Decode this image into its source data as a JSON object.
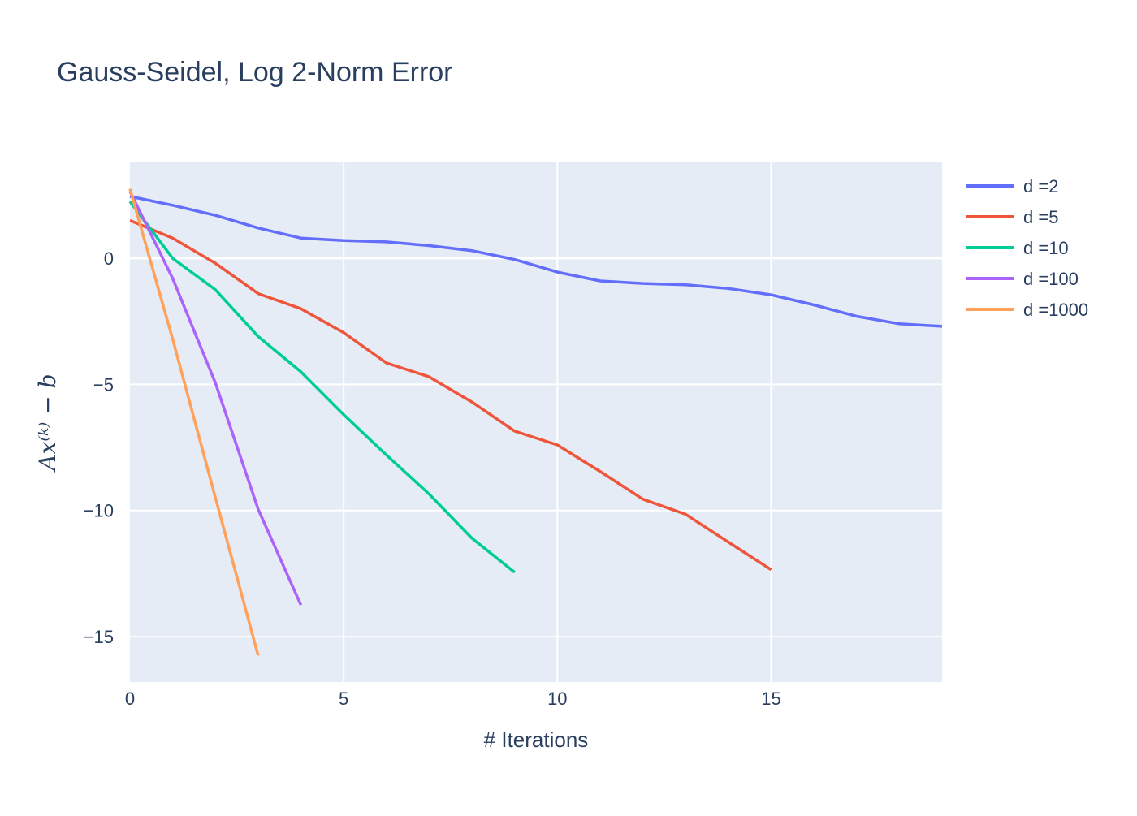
{
  "chart_data": {
    "type": "line",
    "title": "Gauss-Seidel, Log 2-Norm Error",
    "xlabel": "# Iterations",
    "ylabel": "Ax⁽ᵏ⁾ − b",
    "xlim": [
      0,
      19
    ],
    "ylim": [
      -16.8,
      3.8
    ],
    "xticks": [
      0,
      5,
      10,
      15
    ],
    "yticks": [
      0,
      -5,
      -10,
      -15
    ],
    "grid": true,
    "legend_position": "right",
    "series": [
      {
        "name": "d =2",
        "color": "#636efa",
        "x": [
          0,
          1,
          2,
          3,
          4,
          5,
          6,
          7,
          8,
          9,
          10,
          11,
          12,
          13,
          14,
          15,
          16,
          17,
          18,
          19
        ],
        "y": [
          2.45,
          2.1,
          1.7,
          1.2,
          0.8,
          0.7,
          0.65,
          0.5,
          0.3,
          -0.05,
          -0.55,
          -0.9,
          -1.0,
          -1.05,
          -1.2,
          -1.45,
          -1.85,
          -2.3,
          -2.6,
          -2.7
        ]
      },
      {
        "name": "d =5",
        "color": "#ef553b",
        "x": [
          0,
          1,
          2,
          3,
          4,
          5,
          6,
          7,
          8,
          9,
          10,
          11,
          12,
          13,
          14,
          15
        ],
        "y": [
          1.5,
          0.8,
          -0.2,
          -1.4,
          -2.0,
          -2.95,
          -4.15,
          -4.7,
          -5.7,
          -6.85,
          -7.4,
          -8.45,
          -9.55,
          -10.15,
          -11.25,
          -12.35
        ]
      },
      {
        "name": "d =10",
        "color": "#00cc96",
        "x": [
          0,
          1,
          2,
          3,
          4,
          5,
          6,
          7,
          8,
          9
        ],
        "y": [
          2.25,
          0.0,
          -1.25,
          -3.1,
          -4.5,
          -6.2,
          -7.8,
          -9.35,
          -11.1,
          -12.45
        ]
      },
      {
        "name": "d =100",
        "color": "#ab63fa",
        "x": [
          0,
          1,
          2,
          3,
          4
        ],
        "y": [
          2.65,
          -0.8,
          -4.95,
          -9.95,
          -13.75
        ]
      },
      {
        "name": "d =1000",
        "color": "#ffa15a",
        "x": [
          0,
          1,
          2,
          3
        ],
        "y": [
          2.75,
          -3.2,
          -9.5,
          -15.75
        ]
      }
    ]
  }
}
